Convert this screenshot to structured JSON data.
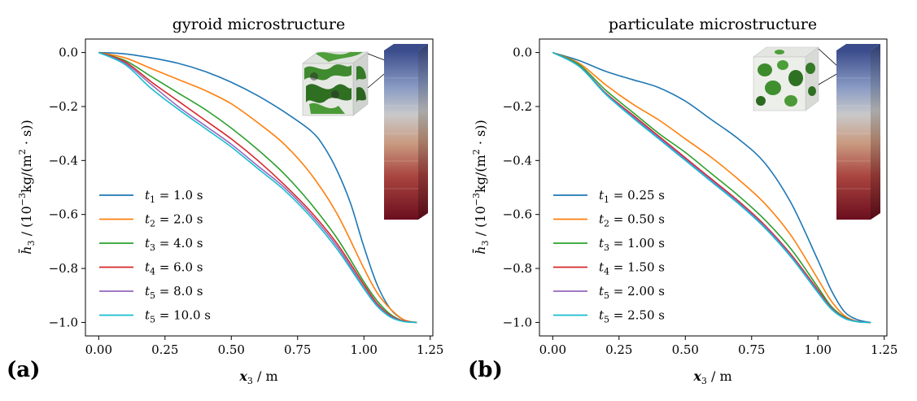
{
  "panels": [
    {
      "letter": "(a)"
    },
    {
      "letter": "(b)"
    }
  ],
  "chart_data": [
    {
      "type": "line",
      "title": "gyroid microstructure",
      "xlabel": "x3 / m",
      "ylabel": "h̄3 / (10⁻³kg/(m² · s))",
      "xlim": [
        -0.05,
        1.26
      ],
      "ylim": [
        -1.05,
        0.05
      ],
      "xticks": [
        "0.00",
        "0.25",
        "0.50",
        "0.75",
        "1.00",
        "1.25"
      ],
      "yticks": [
        "0.0",
        "−0.2",
        "−0.4",
        "−0.6",
        "−0.8",
        "−1.0"
      ],
      "legend_position": "lower-left",
      "inset": "gyroid-microstructure-cube-and-colored-column",
      "series": [
        {
          "name": "t1 = 1.0 s",
          "color": "#1f77b4",
          "x": [
            0,
            0.1,
            0.2,
            0.3,
            0.4,
            0.5,
            0.6,
            0.7,
            0.8,
            0.85,
            0.9,
            0.95,
            1.0,
            1.05,
            1.1,
            1.15,
            1.2
          ],
          "y": [
            0,
            -0.005,
            -0.02,
            -0.04,
            -0.07,
            -0.11,
            -0.16,
            -0.22,
            -0.29,
            -0.35,
            -0.44,
            -0.56,
            -0.72,
            -0.86,
            -0.95,
            -0.99,
            -1.0
          ]
        },
        {
          "name": "t2 = 2.0 s",
          "color": "#ff7f0e",
          "x": [
            0,
            0.1,
            0.2,
            0.3,
            0.4,
            0.5,
            0.6,
            0.7,
            0.8,
            0.9,
            1.0,
            1.05,
            1.1,
            1.15,
            1.2
          ],
          "y": [
            0,
            -0.02,
            -0.06,
            -0.1,
            -0.14,
            -0.19,
            -0.26,
            -0.34,
            -0.45,
            -0.6,
            -0.8,
            -0.89,
            -0.95,
            -0.99,
            -1.0
          ]
        },
        {
          "name": "t3 = 4.0 s",
          "color": "#2ca02c",
          "x": [
            0,
            0.1,
            0.2,
            0.3,
            0.4,
            0.5,
            0.6,
            0.7,
            0.8,
            0.9,
            1.0,
            1.05,
            1.1,
            1.15,
            1.2
          ],
          "y": [
            0,
            -0.03,
            -0.09,
            -0.15,
            -0.21,
            -0.28,
            -0.36,
            -0.45,
            -0.56,
            -0.69,
            -0.85,
            -0.92,
            -0.97,
            -0.995,
            -1.0
          ]
        },
        {
          "name": "t4 = 6.0 s",
          "color": "#d62728",
          "x": [
            0,
            0.1,
            0.2,
            0.3,
            0.4,
            0.5,
            0.6,
            0.7,
            0.8,
            0.9,
            1.0,
            1.05,
            1.1,
            1.15,
            1.2
          ],
          "y": [
            0,
            -0.035,
            -0.11,
            -0.18,
            -0.25,
            -0.32,
            -0.4,
            -0.49,
            -0.59,
            -0.71,
            -0.86,
            -0.93,
            -0.975,
            -0.995,
            -1.0
          ]
        },
        {
          "name": "t5 = 8.0 s",
          "color": "#9467bd",
          "x": [
            0,
            0.1,
            0.2,
            0.3,
            0.4,
            0.5,
            0.6,
            0.7,
            0.8,
            0.9,
            1.0,
            1.05,
            1.1,
            1.15,
            1.2
          ],
          "y": [
            0,
            -0.04,
            -0.12,
            -0.2,
            -0.27,
            -0.34,
            -0.42,
            -0.5,
            -0.6,
            -0.72,
            -0.87,
            -0.935,
            -0.978,
            -0.996,
            -1.0
          ]
        },
        {
          "name": "t5 = 10.0 s",
          "color": "#17becf",
          "x": [
            0,
            0.1,
            0.2,
            0.3,
            0.4,
            0.5,
            0.6,
            0.7,
            0.8,
            0.9,
            1.0,
            1.05,
            1.1,
            1.15,
            1.2
          ],
          "y": [
            0,
            -0.045,
            -0.135,
            -0.21,
            -0.28,
            -0.35,
            -0.43,
            -0.51,
            -0.61,
            -0.73,
            -0.875,
            -0.94,
            -0.98,
            -0.997,
            -1.0
          ]
        }
      ]
    },
    {
      "type": "line",
      "title": "particulate microstructure",
      "xlabel": "x3 / m",
      "ylabel": "h̄3 / (10⁻³kg/(m² · s))",
      "xlim": [
        -0.05,
        1.26
      ],
      "ylim": [
        -1.05,
        0.05
      ],
      "xticks": [
        "0.00",
        "0.25",
        "0.50",
        "0.75",
        "1.00",
        "1.25"
      ],
      "yticks": [
        "0.0",
        "−0.2",
        "−0.4",
        "−0.6",
        "−0.8",
        "−1.0"
      ],
      "legend_position": "lower-left",
      "inset": "particulate-microstructure-cube-and-colored-column",
      "series": [
        {
          "name": "t1 = 0.25 s",
          "color": "#1f77b4",
          "x": [
            0,
            0.1,
            0.2,
            0.3,
            0.4,
            0.5,
            0.6,
            0.7,
            0.8,
            0.9,
            1.0,
            1.05,
            1.1,
            1.15,
            1.2
          ],
          "y": [
            0,
            -0.03,
            -0.07,
            -0.1,
            -0.13,
            -0.18,
            -0.25,
            -0.32,
            -0.41,
            -0.56,
            -0.77,
            -0.88,
            -0.96,
            -0.99,
            -1.0
          ]
        },
        {
          "name": "t2 = 0.50 s",
          "color": "#ff7f0e",
          "x": [
            0,
            0.1,
            0.2,
            0.3,
            0.4,
            0.5,
            0.6,
            0.7,
            0.8,
            0.9,
            1.0,
            1.05,
            1.1,
            1.15,
            1.2
          ],
          "y": [
            0,
            -0.04,
            -0.12,
            -0.19,
            -0.25,
            -0.32,
            -0.39,
            -0.47,
            -0.56,
            -0.68,
            -0.84,
            -0.92,
            -0.975,
            -0.996,
            -1.0
          ]
        },
        {
          "name": "t3 = 1.00 s",
          "color": "#2ca02c",
          "x": [
            0,
            0.1,
            0.2,
            0.3,
            0.4,
            0.5,
            0.6,
            0.7,
            0.8,
            0.9,
            1.0,
            1.05,
            1.1,
            1.15,
            1.2
          ],
          "y": [
            0,
            -0.045,
            -0.14,
            -0.22,
            -0.3,
            -0.37,
            -0.45,
            -0.53,
            -0.62,
            -0.73,
            -0.87,
            -0.94,
            -0.98,
            -0.997,
            -1.0
          ]
        },
        {
          "name": "t4 = 1.50 s",
          "color": "#d62728",
          "x": [
            0,
            0.1,
            0.2,
            0.3,
            0.4,
            0.5,
            0.6,
            0.7,
            0.8,
            0.9,
            1.0,
            1.05,
            1.1,
            1.15,
            1.2
          ],
          "y": [
            0,
            -0.05,
            -0.15,
            -0.23,
            -0.31,
            -0.39,
            -0.47,
            -0.55,
            -0.64,
            -0.75,
            -0.88,
            -0.945,
            -0.982,
            -0.997,
            -1.0
          ]
        },
        {
          "name": "t5 = 2.00 s",
          "color": "#9467bd",
          "x": [
            0,
            0.1,
            0.2,
            0.3,
            0.4,
            0.5,
            0.6,
            0.7,
            0.8,
            0.9,
            1.0,
            1.05,
            1.1,
            1.15,
            1.2
          ],
          "y": [
            0,
            -0.05,
            -0.152,
            -0.235,
            -0.315,
            -0.395,
            -0.475,
            -0.555,
            -0.645,
            -0.755,
            -0.885,
            -0.947,
            -0.983,
            -0.997,
            -1.0
          ]
        },
        {
          "name": "t5 = 2.50 s",
          "color": "#17becf",
          "x": [
            0,
            0.1,
            0.2,
            0.3,
            0.4,
            0.5,
            0.6,
            0.7,
            0.8,
            0.9,
            1.0,
            1.05,
            1.1,
            1.15,
            1.2
          ],
          "y": [
            0,
            -0.052,
            -0.155,
            -0.24,
            -0.32,
            -0.4,
            -0.48,
            -0.56,
            -0.65,
            -0.76,
            -0.89,
            -0.95,
            -0.985,
            -0.998,
            -1.0
          ]
        }
      ]
    }
  ]
}
